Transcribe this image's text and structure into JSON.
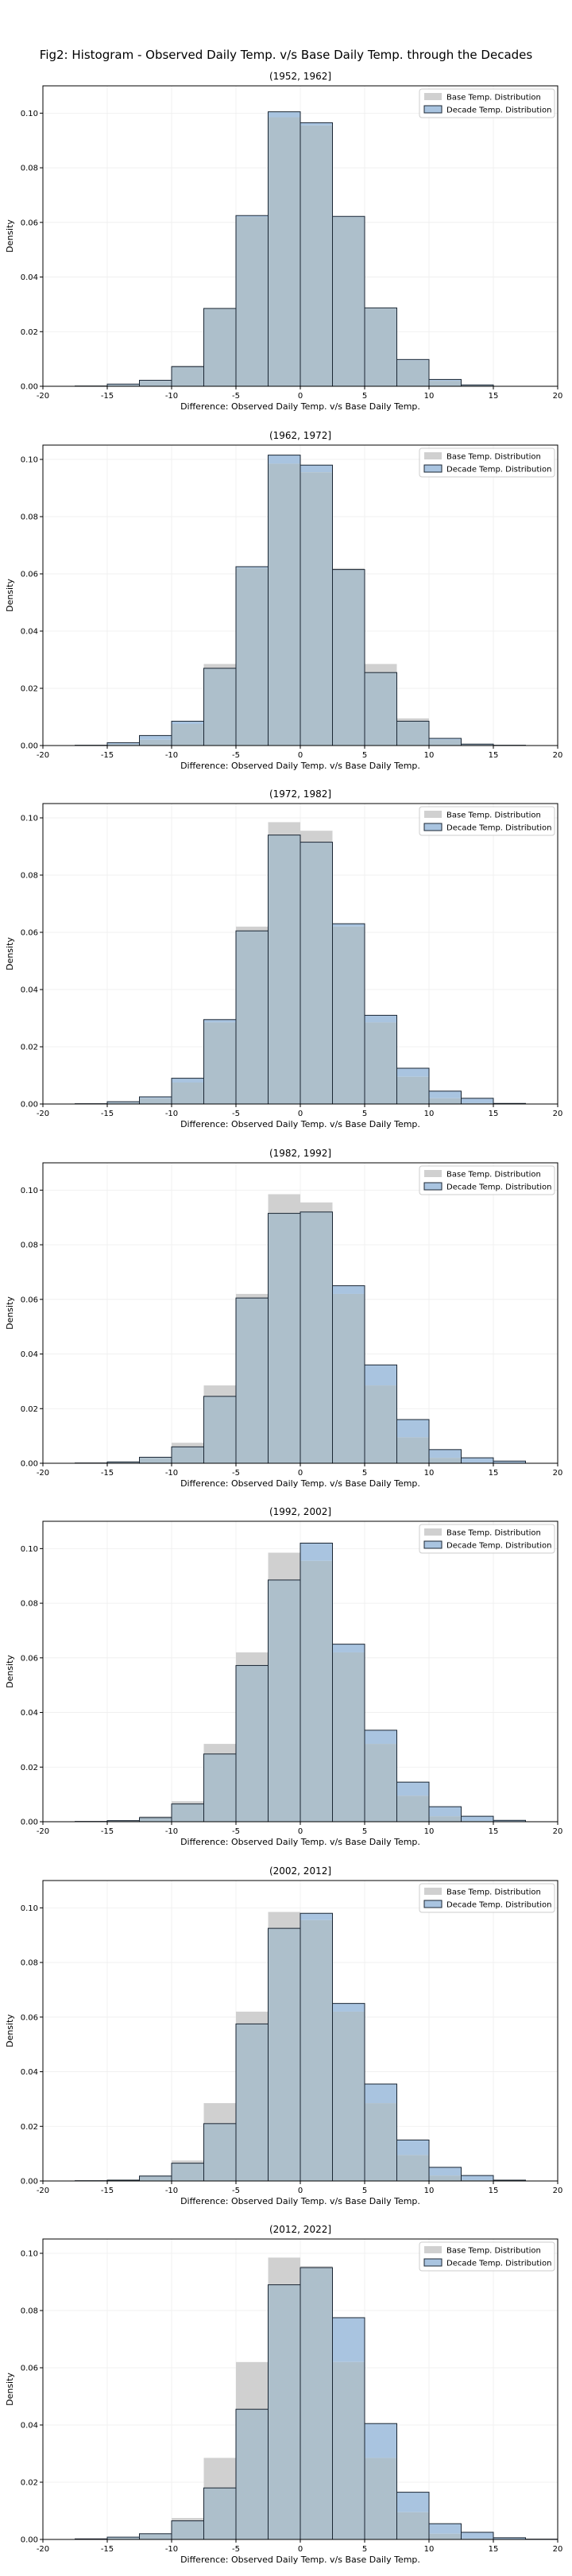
{
  "figure_title": "Fig2: Histogram - Observed Daily Temp. v/s Base Daily Temp. through the Decades",
  "colors": {
    "base_fill": "#d0d0d0",
    "decade_fill": "#a9c4e0",
    "overlap_fill": "#adbfcb",
    "edge": "#1a2633",
    "grid": "#eeeeee"
  },
  "chart_data": [
    {
      "type": "bar",
      "title": "(1952, 1962]",
      "xlabel": "Difference: Observed Daily Temp. v/s Base Daily Temp.",
      "ylabel": "Density",
      "xlim": [
        -20,
        20
      ],
      "ylim": [
        0,
        0.11
      ],
      "grid": true,
      "legend_position": "top-right",
      "bin_edges": [
        -17.5,
        -15,
        -12.5,
        -10,
        -7.5,
        -5,
        -2.5,
        0,
        2.5,
        5,
        7.5,
        10,
        12.5,
        15,
        17.5,
        20
      ],
      "xticks": [
        -20,
        -15,
        -10,
        -5,
        0,
        5,
        10,
        15,
        20
      ],
      "yticks": [
        0.0,
        0.02,
        0.04,
        0.06,
        0.08,
        0.1
      ],
      "series": [
        {
          "name": "Base Temp. Distribution",
          "values": [
            0.0001,
            0.0005,
            0.002,
            0.0075,
            0.0285,
            0.062,
            0.0985,
            0.0955,
            0.062,
            0.0285,
            0.0095,
            0.002,
            0.0003,
            0,
            0
          ]
        },
        {
          "name": "Decade Temp. Distribution",
          "values": [
            0.0001,
            0.0008,
            0.0022,
            0.0072,
            0.0285,
            0.0625,
            0.1005,
            0.0965,
            0.0622,
            0.0287,
            0.0098,
            0.0025,
            0.0005,
            0,
            0
          ]
        }
      ]
    },
    {
      "type": "bar",
      "title": "(1962, 1972]",
      "xlabel": "Difference: Observed Daily Temp. v/s Base Daily Temp.",
      "ylabel": "Density",
      "xlim": [
        -20,
        20
      ],
      "ylim": [
        0,
        0.105
      ],
      "grid": true,
      "legend_position": "top-right",
      "bin_edges": [
        -17.5,
        -15,
        -12.5,
        -10,
        -7.5,
        -5,
        -2.5,
        0,
        2.5,
        5,
        7.5,
        10,
        12.5,
        15,
        17.5,
        20
      ],
      "xticks": [
        -20,
        -15,
        -10,
        -5,
        0,
        5,
        10,
        15,
        20
      ],
      "yticks": [
        0.0,
        0.02,
        0.04,
        0.06,
        0.08,
        0.1
      ],
      "series": [
        {
          "name": "Base Temp. Distribution",
          "values": [
            0.0001,
            0.0005,
            0.002,
            0.0075,
            0.0285,
            0.062,
            0.0985,
            0.0955,
            0.062,
            0.0285,
            0.0095,
            0.002,
            0.0003,
            0,
            0
          ]
        },
        {
          "name": "Decade Temp. Distribution",
          "values": [
            0.0001,
            0.001,
            0.0035,
            0.0085,
            0.027,
            0.0625,
            0.1015,
            0.098,
            0.0615,
            0.0255,
            0.0085,
            0.0025,
            0.0005,
            0.0001,
            0
          ]
        }
      ]
    },
    {
      "type": "bar",
      "title": "(1972, 1982]",
      "xlabel": "Difference: Observed Daily Temp. v/s Base Daily Temp.",
      "ylabel": "Density",
      "xlim": [
        -20,
        20
      ],
      "ylim": [
        0,
        0.105
      ],
      "grid": true,
      "legend_position": "top-right",
      "bin_edges": [
        -17.5,
        -15,
        -12.5,
        -10,
        -7.5,
        -5,
        -2.5,
        0,
        2.5,
        5,
        7.5,
        10,
        12.5,
        15,
        17.5,
        20
      ],
      "xticks": [
        -20,
        -15,
        -10,
        -5,
        0,
        5,
        10,
        15,
        20
      ],
      "yticks": [
        0.0,
        0.02,
        0.04,
        0.06,
        0.08,
        0.1
      ],
      "series": [
        {
          "name": "Base Temp. Distribution",
          "values": [
            0.0001,
            0.0005,
            0.002,
            0.0075,
            0.0285,
            0.062,
            0.0985,
            0.0955,
            0.062,
            0.0285,
            0.0095,
            0.002,
            0.0003,
            0,
            0
          ]
        },
        {
          "name": "Decade Temp. Distribution",
          "values": [
            0.0001,
            0.0008,
            0.0025,
            0.009,
            0.0295,
            0.0605,
            0.094,
            0.0915,
            0.063,
            0.031,
            0.0125,
            0.0045,
            0.002,
            0.0002,
            0
          ]
        }
      ]
    },
    {
      "type": "bar",
      "title": "(1982, 1992]",
      "xlabel": "Difference: Observed Daily Temp. v/s Base Daily Temp.",
      "ylabel": "Density",
      "xlim": [
        -20,
        20
      ],
      "ylim": [
        0,
        0.11
      ],
      "grid": true,
      "legend_position": "top-right",
      "bin_edges": [
        -17.5,
        -15,
        -12.5,
        -10,
        -7.5,
        -5,
        -2.5,
        0,
        2.5,
        5,
        7.5,
        10,
        12.5,
        15,
        17.5,
        20
      ],
      "xticks": [
        -20,
        -15,
        -10,
        -5,
        0,
        5,
        10,
        15,
        20
      ],
      "yticks": [
        0.0,
        0.02,
        0.04,
        0.06,
        0.08,
        0.1
      ],
      "series": [
        {
          "name": "Base Temp. Distribution",
          "values": [
            0.0001,
            0.0005,
            0.002,
            0.0075,
            0.0285,
            0.062,
            0.0985,
            0.0955,
            0.062,
            0.0285,
            0.0095,
            0.002,
            0.0003,
            0,
            0
          ]
        },
        {
          "name": "Decade Temp. Distribution",
          "values": [
            0.0001,
            0.0005,
            0.0022,
            0.006,
            0.0245,
            0.0605,
            0.0915,
            0.092,
            0.065,
            0.036,
            0.016,
            0.005,
            0.002,
            0.0008,
            0
          ]
        }
      ]
    },
    {
      "type": "bar",
      "title": "(1992, 2002]",
      "xlabel": "Difference: Observed Daily Temp. v/s Base Daily Temp.",
      "ylabel": "Density",
      "xlim": [
        -20,
        20
      ],
      "ylim": [
        0,
        0.11
      ],
      "grid": true,
      "legend_position": "top-right",
      "bin_edges": [
        -17.5,
        -15,
        -12.5,
        -10,
        -7.5,
        -5,
        -2.5,
        0,
        2.5,
        5,
        7.5,
        10,
        12.5,
        15,
        17.5,
        20
      ],
      "xticks": [
        -20,
        -15,
        -10,
        -5,
        0,
        5,
        10,
        15,
        20
      ],
      "yticks": [
        0.0,
        0.02,
        0.04,
        0.06,
        0.08,
        0.1
      ],
      "series": [
        {
          "name": "Base Temp. Distribution",
          "values": [
            0.0001,
            0.0005,
            0.002,
            0.0075,
            0.0285,
            0.062,
            0.0985,
            0.0955,
            0.062,
            0.0285,
            0.0095,
            0.002,
            0.0003,
            0,
            0
          ]
        },
        {
          "name": "Decade Temp. Distribution",
          "values": [
            0.0001,
            0.0004,
            0.0015,
            0.0065,
            0.0248,
            0.0572,
            0.0885,
            0.102,
            0.065,
            0.0335,
            0.0145,
            0.0055,
            0.002,
            0.0005,
            0
          ]
        }
      ]
    },
    {
      "type": "bar",
      "title": "(2002, 2012]",
      "xlabel": "Difference: Observed Daily Temp. v/s Base Daily Temp.",
      "ylabel": "Density",
      "xlim": [
        -20,
        20
      ],
      "ylim": [
        0,
        0.11
      ],
      "grid": true,
      "legend_position": "top-right",
      "bin_edges": [
        -17.5,
        -15,
        -12.5,
        -10,
        -7.5,
        -5,
        -2.5,
        0,
        2.5,
        5,
        7.5,
        10,
        12.5,
        15,
        17.5,
        20
      ],
      "xticks": [
        -20,
        -15,
        -10,
        -5,
        0,
        5,
        10,
        15,
        20
      ],
      "yticks": [
        0.0,
        0.02,
        0.04,
        0.06,
        0.08,
        0.1
      ],
      "series": [
        {
          "name": "Base Temp. Distribution",
          "values": [
            0.0001,
            0.0005,
            0.002,
            0.0075,
            0.0285,
            0.062,
            0.0985,
            0.0955,
            0.062,
            0.0285,
            0.0095,
            0.002,
            0.0003,
            0,
            0
          ]
        },
        {
          "name": "Decade Temp. Distribution",
          "values": [
            0.0001,
            0.0003,
            0.0018,
            0.0065,
            0.021,
            0.0575,
            0.0925,
            0.098,
            0.065,
            0.0355,
            0.015,
            0.005,
            0.002,
            0.0003,
            0
          ]
        }
      ]
    },
    {
      "type": "bar",
      "title": "(2012, 2022]",
      "xlabel": "Difference: Observed Daily Temp. v/s Base Daily Temp.",
      "ylabel": "Density",
      "xlim": [
        -20,
        20
      ],
      "ylim": [
        0,
        0.105
      ],
      "grid": true,
      "legend_position": "top-right",
      "bin_edges": [
        -17.5,
        -15,
        -12.5,
        -10,
        -7.5,
        -5,
        -2.5,
        0,
        2.5,
        5,
        7.5,
        10,
        12.5,
        15,
        17.5,
        20
      ],
      "xticks": [
        -20,
        -15,
        -10,
        -5,
        0,
        5,
        10,
        15,
        20
      ],
      "yticks": [
        0.0,
        0.02,
        0.04,
        0.06,
        0.08,
        0.1
      ],
      "series": [
        {
          "name": "Base Temp. Distribution",
          "values": [
            0.0001,
            0.0005,
            0.002,
            0.0075,
            0.0285,
            0.062,
            0.0985,
            0.0955,
            0.062,
            0.0285,
            0.0095,
            0.002,
            0.0003,
            0,
            0
          ]
        },
        {
          "name": "Decade Temp. Distribution",
          "values": [
            0.0002,
            0.0008,
            0.002,
            0.0065,
            0.018,
            0.0455,
            0.089,
            0.095,
            0.0775,
            0.0405,
            0.0165,
            0.0055,
            0.0025,
            0.0006,
            0.0001
          ]
        }
      ]
    }
  ]
}
